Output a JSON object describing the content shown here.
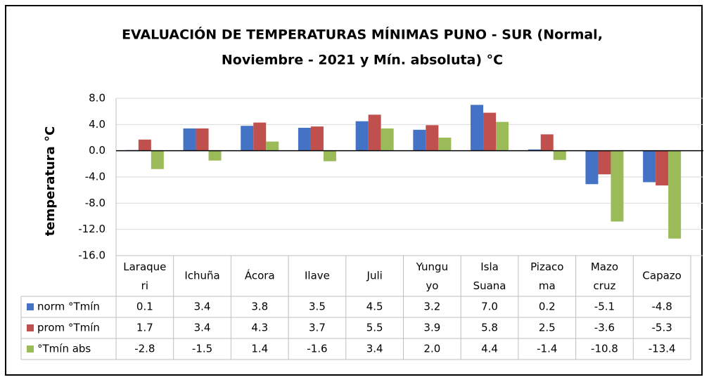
{
  "chart_data": {
    "type": "bar",
    "title": [
      "EVALUACIÓN DE TEMPERATURAS MÍNIMAS PUNO - SUR  (Normal,",
      "Noviembre - 2021 y  Mín. absoluta) °C"
    ],
    "y_label": "temperatura °C",
    "categories": [
      "Laraque\nri",
      "Ichuña",
      "Ácora",
      "Ilave",
      "Juli",
      "Yungu\nyo",
      "Isla\nSuana",
      "Pizaco\nma",
      "Mazo\ncruz",
      "Capazo"
    ],
    "series": [
      {
        "name": "norm °Tmín",
        "color": "#4472c4",
        "values": [
          0.1,
          3.4,
          3.8,
          3.5,
          4.5,
          3.2,
          7.0,
          0.2,
          -5.1,
          -4.8
        ],
        "value_labels": [
          "0.1",
          "3.4",
          "3.8",
          "3.5",
          "4.5",
          "3.2",
          "7.0",
          "0.2",
          "-5.1",
          "-4.8"
        ]
      },
      {
        "name": "prom °Tmín",
        "color": "#c0504d",
        "values": [
          1.7,
          3.4,
          4.3,
          3.7,
          5.5,
          3.9,
          5.8,
          2.5,
          -3.6,
          -5.3
        ],
        "value_labels": [
          "1.7",
          "3.4",
          "4.3",
          "3.7",
          "5.5",
          "3.9",
          "5.8",
          "2.5",
          "-3.6",
          "-5.3"
        ]
      },
      {
        "name": "°Tmín abs",
        "color": "#9bbb59",
        "values": [
          -2.8,
          -1.5,
          1.4,
          -1.6,
          3.4,
          2.0,
          4.4,
          -1.4,
          -10.8,
          -13.4
        ],
        "value_labels": [
          "-2.8",
          "-1.5",
          "1.4",
          "-1.6",
          "3.4",
          "2.0",
          "4.4",
          "-1.4",
          "-10.8",
          "-13.4"
        ]
      }
    ],
    "ylim": [
      -16,
      8
    ],
    "yticks": [
      {
        "value": -16,
        "label": "-16.0"
      },
      {
        "value": -12,
        "label": "-12.0"
      },
      {
        "value": -8,
        "label": "-8.0"
      },
      {
        "value": -4,
        "label": "-4.0"
      },
      {
        "value": 0,
        "label": "0.0"
      },
      {
        "value": 4,
        "label": "4.0"
      },
      {
        "value": 8,
        "label": "8.0"
      }
    ],
    "grid": true
  }
}
